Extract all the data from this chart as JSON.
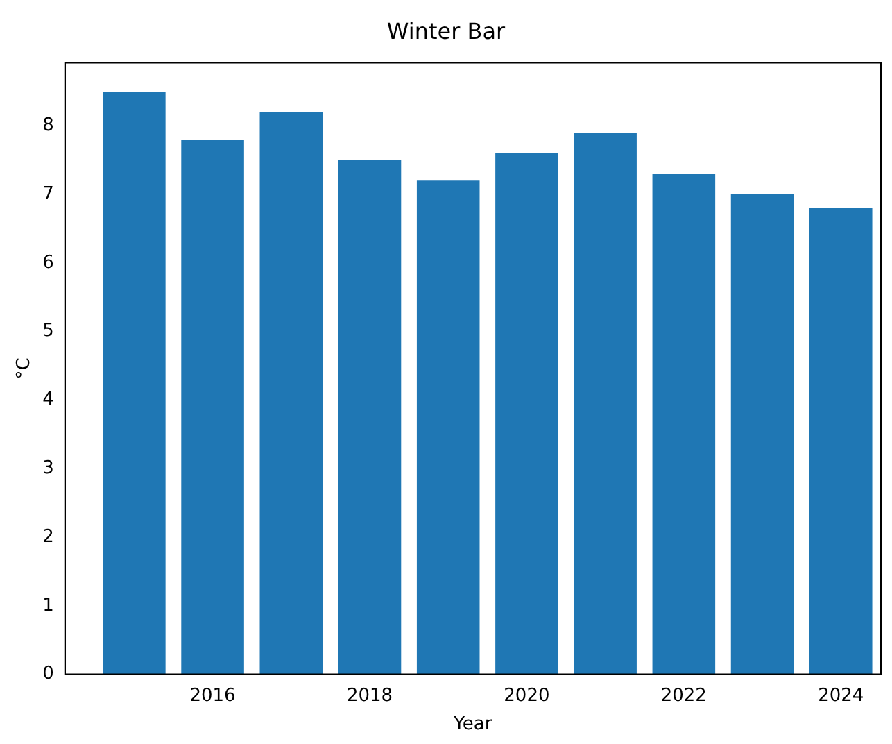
{
  "chart_data": {
    "type": "bar",
    "title": "Winter Bar",
    "xlabel": "Year",
    "ylabel": "°C",
    "x": [
      2015,
      2016,
      2017,
      2018,
      2019,
      2020,
      2021,
      2022,
      2023,
      2024
    ],
    "values": [
      8.5,
      7.8,
      8.2,
      7.5,
      7.2,
      7.6,
      7.9,
      7.3,
      7.0,
      6.8
    ],
    "color": "#1f77b4",
    "xlim": [
      2014.12,
      2024.51
    ],
    "xticks": [
      2016,
      2018,
      2020,
      2022,
      2024
    ],
    "ylim": [
      0,
      8.92
    ],
    "yticks": [
      0,
      1,
      2,
      3,
      4,
      5,
      6,
      7,
      8
    ],
    "grid": false,
    "legend": false
  }
}
